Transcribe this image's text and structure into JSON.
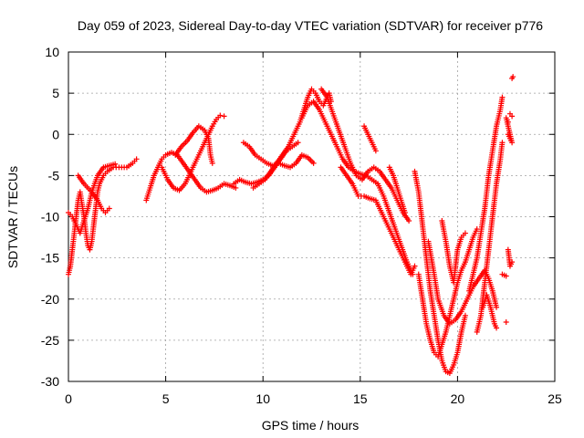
{
  "chart_data": {
    "type": "scatter",
    "title": "Day 059 of 2023, Sidereal Day-to-day VTEC variation (SDTVAR) for receiver p776",
    "xlabel": "GPS time / hours",
    "ylabel": "SDTVAR / TECUs",
    "xlim": [
      0,
      25
    ],
    "ylim": [
      -30,
      10
    ],
    "x_ticks": [
      "0",
      "5",
      "10",
      "15",
      "20",
      "25"
    ],
    "y_ticks": [
      "10",
      "5",
      "0",
      "-5",
      "-10",
      "-15",
      "-20",
      "-25",
      "-30"
    ],
    "grid": true,
    "marker": "plus",
    "color": "#ff0000",
    "series": [
      {
        "points": [
          [
            0.0,
            -17.0
          ],
          [
            0.1,
            -16.0
          ],
          [
            0.2,
            -14.0
          ],
          [
            0.3,
            -12.0
          ],
          [
            0.4,
            -10.0
          ],
          [
            0.5,
            -8.0
          ],
          [
            0.6,
            -7.0
          ],
          [
            0.7,
            -8.5
          ],
          [
            0.8,
            -10.0
          ],
          [
            0.9,
            -12.0
          ],
          [
            1.0,
            -13.5
          ],
          [
            1.1,
            -14.0
          ],
          [
            1.2,
            -13.0
          ],
          [
            1.3,
            -11.0
          ],
          [
            1.4,
            -9.0
          ],
          [
            1.5,
            -7.0
          ],
          [
            1.6,
            -6.0
          ],
          [
            1.8,
            -5.0
          ],
          [
            2.0,
            -4.5
          ],
          [
            2.3,
            -4.0
          ],
          [
            2.6,
            -4.0
          ],
          [
            3.0,
            -4.0
          ],
          [
            3.3,
            -3.5
          ],
          [
            3.5,
            -3.0
          ],
          [
            0.0,
            -9.5
          ],
          [
            0.2,
            -10.0
          ],
          [
            0.4,
            -11.0
          ],
          [
            0.6,
            -12.0
          ],
          [
            0.8,
            -10.5
          ],
          [
            1.0,
            -9.0
          ],
          [
            1.2,
            -7.0
          ],
          [
            1.5,
            -5.0
          ],
          [
            1.8,
            -4.0
          ],
          [
            2.1,
            -3.8
          ],
          [
            2.4,
            -3.6
          ],
          [
            0.5,
            -5.0
          ],
          [
            0.8,
            -6.0
          ],
          [
            1.2,
            -7.0
          ],
          [
            1.5,
            -8.0
          ],
          [
            1.7,
            -9.0
          ],
          [
            1.9,
            -9.5
          ],
          [
            2.1,
            -9.0
          ],
          [
            4.0,
            -8.0
          ],
          [
            4.2,
            -6.5
          ],
          [
            4.4,
            -5.0
          ],
          [
            4.6,
            -4.0
          ],
          [
            4.8,
            -3.0
          ],
          [
            5.0,
            -2.5
          ],
          [
            5.3,
            -2.2
          ],
          [
            5.6,
            -2.5
          ],
          [
            5.9,
            -3.5
          ],
          [
            6.2,
            -4.5
          ],
          [
            6.5,
            -5.5
          ],
          [
            6.8,
            -6.5
          ],
          [
            7.1,
            -7.0
          ],
          [
            7.4,
            -6.8
          ],
          [
            7.7,
            -6.5
          ],
          [
            8.0,
            -6.0
          ],
          [
            8.3,
            -6.2
          ],
          [
            8.6,
            -6.5
          ],
          [
            4.8,
            -4.0
          ],
          [
            5.1,
            -5.5
          ],
          [
            5.4,
            -6.5
          ],
          [
            5.7,
            -6.8
          ],
          [
            6.0,
            -6.0
          ],
          [
            6.3,
            -4.5
          ],
          [
            6.6,
            -3.0
          ],
          [
            6.9,
            -1.5
          ],
          [
            7.2,
            0.0
          ],
          [
            7.4,
            1.0
          ],
          [
            7.6,
            1.8
          ],
          [
            7.8,
            2.3
          ],
          [
            8.0,
            2.2
          ],
          [
            5.5,
            -2.5
          ],
          [
            5.8,
            -1.5
          ],
          [
            6.1,
            -0.8
          ],
          [
            6.4,
            0.2
          ],
          [
            6.7,
            1.0
          ],
          [
            7.0,
            0.5
          ],
          [
            7.2,
            -0.5
          ],
          [
            7.3,
            -2.5
          ],
          [
            7.4,
            -3.5
          ],
          [
            8.5,
            -6.0
          ],
          [
            8.8,
            -5.5
          ],
          [
            9.1,
            -5.8
          ],
          [
            9.4,
            -6.0
          ],
          [
            9.7,
            -5.8
          ],
          [
            10.0,
            -5.5
          ],
          [
            10.3,
            -5.0
          ],
          [
            10.6,
            -4.0
          ],
          [
            10.9,
            -3.0
          ],
          [
            11.2,
            -2.0
          ],
          [
            11.5,
            -1.5
          ],
          [
            11.8,
            -1.0
          ],
          [
            9.0,
            -1.0
          ],
          [
            9.3,
            -1.5
          ],
          [
            9.6,
            -2.5
          ],
          [
            9.9,
            -3.0
          ],
          [
            10.2,
            -3.5
          ],
          [
            10.5,
            -3.8
          ],
          [
            10.8,
            -3.5
          ],
          [
            11.1,
            -3.8
          ],
          [
            11.4,
            -4.0
          ],
          [
            11.7,
            -3.5
          ],
          [
            12.0,
            -2.5
          ],
          [
            12.3,
            -2.8
          ],
          [
            12.6,
            -3.5
          ],
          [
            9.5,
            -6.5
          ],
          [
            9.8,
            -6.0
          ],
          [
            10.1,
            -5.5
          ],
          [
            10.4,
            -4.5
          ],
          [
            10.7,
            -3.5
          ],
          [
            11.0,
            -2.5
          ],
          [
            11.3,
            -1.5
          ],
          [
            11.6,
            0.0
          ],
          [
            11.9,
            1.5
          ],
          [
            12.1,
            3.0
          ],
          [
            12.3,
            4.5
          ],
          [
            12.5,
            5.5
          ],
          [
            12.7,
            5.0
          ],
          [
            12.9,
            4.0
          ],
          [
            13.1,
            3.5
          ],
          [
            13.3,
            4.5
          ],
          [
            13.4,
            5.0
          ],
          [
            13.5,
            4.0
          ],
          [
            12.0,
            2.0
          ],
          [
            12.3,
            3.5
          ],
          [
            12.6,
            4.0
          ],
          [
            12.9,
            3.0
          ],
          [
            13.2,
            1.5
          ],
          [
            13.5,
            0.0
          ],
          [
            13.8,
            -1.5
          ],
          [
            14.1,
            -3.0
          ],
          [
            14.4,
            -4.0
          ],
          [
            14.7,
            -4.5
          ],
          [
            15.0,
            -4.8
          ],
          [
            15.3,
            -5.0
          ],
          [
            15.6,
            -5.5
          ],
          [
            15.9,
            -6.0
          ],
          [
            16.2,
            -7.5
          ],
          [
            16.5,
            -9.5
          ],
          [
            16.8,
            -11.5
          ],
          [
            17.1,
            -13.5
          ],
          [
            17.4,
            -15.5
          ],
          [
            17.7,
            -17.0
          ],
          [
            13.0,
            5.5
          ],
          [
            13.3,
            4.5
          ],
          [
            13.6,
            2.5
          ],
          [
            13.9,
            0.5
          ],
          [
            14.2,
            -1.5
          ],
          [
            14.5,
            -3.5
          ],
          [
            14.8,
            -5.0
          ],
          [
            15.1,
            -5.5
          ],
          [
            15.4,
            -4.5
          ],
          [
            15.7,
            -4.0
          ],
          [
            16.0,
            -4.5
          ],
          [
            16.3,
            -5.5
          ],
          [
            16.6,
            -6.5
          ],
          [
            16.9,
            -8.0
          ],
          [
            17.2,
            -9.5
          ],
          [
            17.5,
            -10.5
          ],
          [
            14.0,
            -4.0
          ],
          [
            14.3,
            -5.0
          ],
          [
            14.6,
            -6.0
          ],
          [
            14.9,
            -7.5
          ],
          [
            15.2,
            -7.5
          ],
          [
            15.5,
            -7.8
          ],
          [
            15.8,
            -8.0
          ],
          [
            16.1,
            -9.5
          ],
          [
            16.4,
            -11.0
          ],
          [
            16.7,
            -12.5
          ],
          [
            17.0,
            -14.0
          ],
          [
            17.3,
            -15.5
          ],
          [
            17.6,
            -17.0
          ],
          [
            17.8,
            -16.0
          ],
          [
            15.2,
            1.0
          ],
          [
            15.4,
            0.0
          ],
          [
            15.6,
            -1.0
          ],
          [
            15.8,
            -2.0
          ],
          [
            16.5,
            -4.0
          ],
          [
            16.7,
            -5.0
          ],
          [
            16.9,
            -6.5
          ],
          [
            17.1,
            -8.0
          ],
          [
            17.3,
            -9.5
          ],
          [
            17.8,
            -4.5
          ],
          [
            18.0,
            -7.0
          ],
          [
            18.2,
            -11.0
          ],
          [
            18.4,
            -15.0
          ],
          [
            18.6,
            -19.0
          ],
          [
            18.8,
            -22.0
          ],
          [
            19.0,
            -25.0
          ],
          [
            19.2,
            -27.5
          ],
          [
            19.4,
            -28.8
          ],
          [
            19.6,
            -29.0
          ],
          [
            19.8,
            -28.0
          ],
          [
            20.0,
            -26.5
          ],
          [
            20.2,
            -24.0
          ],
          [
            20.4,
            -22.0
          ],
          [
            18.0,
            -17.0
          ],
          [
            18.2,
            -20.0
          ],
          [
            18.4,
            -23.0
          ],
          [
            18.6,
            -25.0
          ],
          [
            18.8,
            -26.5
          ],
          [
            19.0,
            -27.0
          ],
          [
            19.2,
            -25.5
          ],
          [
            19.4,
            -24.0
          ],
          [
            19.6,
            -22.0
          ],
          [
            19.8,
            -20.0
          ],
          [
            20.0,
            -18.0
          ],
          [
            20.2,
            -16.5
          ],
          [
            20.4,
            -15.5
          ],
          [
            20.6,
            -14.0
          ],
          [
            20.8,
            -12.5
          ],
          [
            21.0,
            -11.5
          ],
          [
            18.5,
            -13.0
          ],
          [
            18.8,
            -17.0
          ],
          [
            19.0,
            -20.0
          ],
          [
            19.3,
            -22.0
          ],
          [
            19.6,
            -23.0
          ],
          [
            19.9,
            -22.5
          ],
          [
            20.2,
            -21.5
          ],
          [
            20.5,
            -20.0
          ],
          [
            20.8,
            -18.5
          ],
          [
            21.1,
            -17.5
          ],
          [
            21.4,
            -16.5
          ],
          [
            21.6,
            -17.5
          ],
          [
            21.8,
            -19.0
          ],
          [
            22.0,
            -21.0
          ],
          [
            19.2,
            -10.5
          ],
          [
            19.4,
            -13.0
          ],
          [
            19.6,
            -16.0
          ],
          [
            19.8,
            -18.0
          ],
          [
            20.0,
            -14.0
          ],
          [
            20.2,
            -12.5
          ],
          [
            20.4,
            -12.0
          ],
          [
            20.6,
            -19.0
          ],
          [
            20.8,
            -17.0
          ],
          [
            21.0,
            -15.0
          ],
          [
            21.2,
            -12.0
          ],
          [
            21.4,
            -9.0
          ],
          [
            21.6,
            -5.0
          ],
          [
            21.8,
            -2.0
          ],
          [
            22.0,
            1.0
          ],
          [
            22.2,
            3.0
          ],
          [
            22.3,
            4.5
          ],
          [
            21.0,
            -24.0
          ],
          [
            21.2,
            -22.0
          ],
          [
            21.4,
            -18.0
          ],
          [
            21.6,
            -14.0
          ],
          [
            21.8,
            -10.0
          ],
          [
            22.0,
            -6.0
          ],
          [
            22.2,
            -3.0
          ],
          [
            22.3,
            -1.0
          ],
          [
            21.3,
            -21.0
          ],
          [
            21.5,
            -19.5
          ],
          [
            21.7,
            -21.0
          ],
          [
            21.9,
            -23.0
          ],
          [
            22.0,
            -23.5
          ],
          [
            22.3,
            -17.0
          ],
          [
            22.5,
            -17.2
          ],
          [
            22.5,
            -22.8
          ],
          [
            22.6,
            0.0
          ],
          [
            22.7,
            -0.5
          ],
          [
            22.8,
            -1.0
          ],
          [
            22.5,
            2.0
          ],
          [
            22.6,
            1.5
          ],
          [
            22.8,
            6.8
          ],
          [
            22.85,
            7.0
          ],
          [
            22.7,
            2.5
          ],
          [
            22.8,
            2.2
          ],
          [
            22.6,
            -14.0
          ],
          [
            22.7,
            -16.0
          ],
          [
            22.8,
            -15.5
          ]
        ]
      }
    ]
  }
}
